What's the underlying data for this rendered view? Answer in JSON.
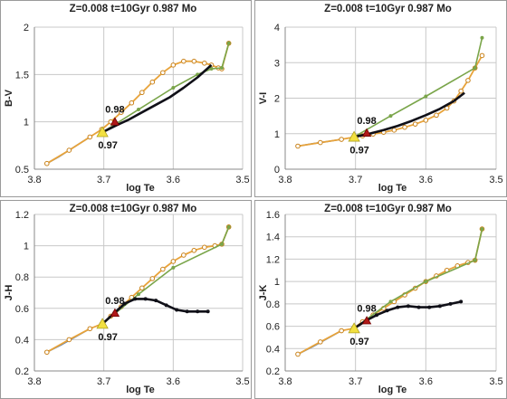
{
  "colors": {
    "grid": "#c8c8c8",
    "axis": "#888888",
    "model_a": "#e8a33a",
    "model_a_marker_edge": "#c9821a",
    "model_b": "#101018",
    "model_c": "#7aa54a",
    "model_d": "#5a7fb0",
    "point_097": "#f2e040",
    "point_098": "#b01818"
  },
  "chart_data": [
    {
      "type": "line",
      "title": "Z=0.008  t=10Gyr  0.987 Mo",
      "xlabel": "log Te",
      "ylabel": "B-V",
      "xlim": [
        3.8,
        3.5
      ],
      "ylim": [
        0.5,
        2.0
      ],
      "xticks": [
        3.8,
        3.7,
        3.6,
        3.5
      ],
      "xtick_labels": [
        "3.8",
        "3.7",
        "3.6",
        "3.5"
      ],
      "yticks": [
        0.5,
        1.0,
        1.5,
        2.0
      ],
      "ytick_labels": [
        "0.5",
        "1",
        "1.5",
        "2"
      ],
      "grid": true,
      "series": [
        {
          "color_key": "model_d",
          "x": [
            3.782,
            3.765,
            3.75,
            3.735,
            3.72
          ],
          "y": [
            0.56,
            0.63,
            0.7,
            0.77,
            0.84
          ]
        },
        {
          "color_key": "model_a",
          "markers": true,
          "x": [
            3.782,
            3.75,
            3.72,
            3.703,
            3.69,
            3.675,
            3.66,
            3.645,
            3.63,
            3.615,
            3.6,
            3.585,
            3.57,
            3.555,
            3.545,
            3.535,
            3.53,
            3.52
          ],
          "y": [
            0.56,
            0.7,
            0.84,
            0.92,
            1.0,
            1.1,
            1.2,
            1.31,
            1.42,
            1.52,
            1.6,
            1.64,
            1.64,
            1.62,
            1.6,
            1.57,
            1.56,
            1.83
          ]
        },
        {
          "color_key": "model_c",
          "markers": true,
          "x": [
            3.702,
            3.65,
            3.6,
            3.565,
            3.545,
            3.53,
            3.52
          ],
          "y": [
            0.89,
            1.13,
            1.36,
            1.5,
            1.56,
            1.57,
            1.83
          ]
        },
        {
          "color_key": "model_b",
          "x": [
            3.702,
            3.68,
            3.665,
            3.645,
            3.625,
            3.605,
            3.585,
            3.565,
            3.545
          ],
          "y": [
            0.89,
            0.97,
            1.02,
            1.1,
            1.18,
            1.26,
            1.36,
            1.47,
            1.6
          ]
        }
      ],
      "points": [
        {
          "label": "0.97",
          "color_key": "point_097",
          "shape": "triangle",
          "x": 3.702,
          "y": 0.89
        },
        {
          "label": "0.98",
          "color_key": "point_098",
          "shape": "triangle",
          "x": 3.684,
          "y": 1.0
        }
      ]
    },
    {
      "type": "line",
      "title": "Z=0.008  t=10Gyr  0.987 Mo",
      "xlabel": "log Te",
      "ylabel": "V-I",
      "xlim": [
        3.8,
        3.5
      ],
      "ylim": [
        0,
        4
      ],
      "xticks": [
        3.8,
        3.7,
        3.6,
        3.5
      ],
      "xtick_labels": [
        "3.8",
        "3.7",
        "3.6",
        "3.5"
      ],
      "yticks": [
        0,
        1,
        2,
        3,
        4
      ],
      "ytick_labels": [
        "0",
        "1",
        "2",
        "3",
        "4"
      ],
      "grid": true,
      "series": [
        {
          "color_key": "model_d",
          "x": [
            3.782,
            3.76,
            3.74,
            3.72
          ],
          "y": [
            0.65,
            0.72,
            0.78,
            0.84
          ]
        },
        {
          "color_key": "model_a",
          "markers": true,
          "x": [
            3.782,
            3.75,
            3.72,
            3.703,
            3.69,
            3.675,
            3.66,
            3.645,
            3.63,
            3.615,
            3.6,
            3.585,
            3.57,
            3.56,
            3.55,
            3.54,
            3.53,
            3.52
          ],
          "y": [
            0.65,
            0.75,
            0.84,
            0.9,
            0.94,
            0.99,
            1.04,
            1.1,
            1.18,
            1.27,
            1.38,
            1.52,
            1.72,
            1.92,
            2.2,
            2.5,
            2.85,
            3.2
          ]
        },
        {
          "color_key": "model_c",
          "markers": true,
          "x": [
            3.702,
            3.65,
            3.6,
            3.53,
            3.52
          ],
          "y": [
            0.91,
            1.5,
            2.05,
            2.85,
            3.7
          ]
        },
        {
          "color_key": "model_b",
          "x": [
            3.702,
            3.68,
            3.66,
            3.64,
            3.62,
            3.6,
            3.58,
            3.56,
            3.545
          ],
          "y": [
            0.91,
            1.0,
            1.1,
            1.22,
            1.36,
            1.52,
            1.7,
            1.92,
            2.15
          ]
        }
      ],
      "points": [
        {
          "label": "0.97",
          "color_key": "point_097",
          "shape": "triangle",
          "x": 3.702,
          "y": 0.91
        },
        {
          "label": "0.98",
          "color_key": "point_098",
          "shape": "triangle",
          "x": 3.684,
          "y": 1.02
        }
      ]
    },
    {
      "type": "line",
      "title": "Z=0.008  t=10Gyr  0.987 Mo",
      "xlabel": "log Te",
      "ylabel": "J-H",
      "xlim": [
        3.8,
        3.5
      ],
      "ylim": [
        0.2,
        1.2
      ],
      "xticks": [
        3.8,
        3.7,
        3.6,
        3.5
      ],
      "xtick_labels": [
        "3.8",
        "3.7",
        "3.6",
        "3.5"
      ],
      "yticks": [
        0.2,
        0.4,
        0.6,
        0.8,
        1.0,
        1.2
      ],
      "ytick_labels": [
        "0.2",
        "0.4",
        "0.6",
        "0.8",
        "1",
        "1.2"
      ],
      "grid": true,
      "series": [
        {
          "color_key": "model_d",
          "x": [
            3.782,
            3.76,
            3.74,
            3.72
          ],
          "y": [
            0.32,
            0.37,
            0.42,
            0.47
          ]
        },
        {
          "color_key": "model_a",
          "markers": true,
          "x": [
            3.782,
            3.75,
            3.72,
            3.703,
            3.69,
            3.675,
            3.66,
            3.645,
            3.63,
            3.615,
            3.6,
            3.585,
            3.57,
            3.555,
            3.54,
            3.53,
            3.52
          ],
          "y": [
            0.32,
            0.4,
            0.47,
            0.5,
            0.55,
            0.61,
            0.67,
            0.73,
            0.79,
            0.85,
            0.9,
            0.94,
            0.97,
            0.99,
            1.0,
            1.01,
            1.12
          ]
        },
        {
          "color_key": "model_c",
          "markers": true,
          "x": [
            3.702,
            3.65,
            3.6,
            3.53,
            3.52
          ],
          "y": [
            0.5,
            0.69,
            0.86,
            1.01,
            1.12
          ]
        },
        {
          "color_key": "model_b",
          "markers": true,
          "x": [
            3.702,
            3.685,
            3.67,
            3.655,
            3.64,
            3.625,
            3.61,
            3.595,
            3.58,
            3.565,
            3.55
          ],
          "y": [
            0.5,
            0.57,
            0.63,
            0.66,
            0.66,
            0.65,
            0.62,
            0.59,
            0.58,
            0.58,
            0.58
          ]
        }
      ],
      "points": [
        {
          "label": "0.97",
          "color_key": "point_097",
          "shape": "triangle",
          "x": 3.702,
          "y": 0.5
        },
        {
          "label": "0.98",
          "color_key": "point_098",
          "shape": "triangle",
          "x": 3.684,
          "y": 0.57
        }
      ]
    },
    {
      "type": "line",
      "title": "Z=0.008  t=10Gyr  0.987 Mo",
      "xlabel": "log Te",
      "ylabel": "J-K",
      "xlim": [
        3.8,
        3.5
      ],
      "ylim": [
        0.2,
        1.6
      ],
      "xticks": [
        3.8,
        3.7,
        3.6,
        3.5
      ],
      "xtick_labels": [
        "3.8",
        "3.7",
        "3.6",
        "3.5"
      ],
      "yticks": [
        0.2,
        0.4,
        0.6,
        0.8,
        1.0,
        1.2,
        1.4,
        1.6
      ],
      "ytick_labels": [
        "0.2",
        "0.4",
        "0.6",
        "0.8",
        "1",
        "1.2",
        "1.4",
        "1.6"
      ],
      "grid": true,
      "series": [
        {
          "color_key": "model_d",
          "x": [
            3.782,
            3.76,
            3.74,
            3.72
          ],
          "y": [
            0.35,
            0.42,
            0.49,
            0.56
          ]
        },
        {
          "color_key": "model_a",
          "markers": true,
          "x": [
            3.782,
            3.75,
            3.72,
            3.703,
            3.69,
            3.675,
            3.66,
            3.645,
            3.63,
            3.615,
            3.6,
            3.585,
            3.57,
            3.555,
            3.54,
            3.53,
            3.52
          ],
          "y": [
            0.35,
            0.46,
            0.56,
            0.58,
            0.64,
            0.7,
            0.76,
            0.82,
            0.88,
            0.94,
            1.0,
            1.05,
            1.1,
            1.14,
            1.17,
            1.19,
            1.47
          ]
        },
        {
          "color_key": "model_c",
          "markers": true,
          "x": [
            3.702,
            3.65,
            3.6,
            3.53,
            3.52
          ],
          "y": [
            0.58,
            0.82,
            1.0,
            1.19,
            1.47
          ]
        },
        {
          "color_key": "model_b",
          "markers": true,
          "x": [
            3.702,
            3.685,
            3.67,
            3.655,
            3.64,
            3.625,
            3.61,
            3.595,
            3.58,
            3.565,
            3.55
          ],
          "y": [
            0.58,
            0.65,
            0.7,
            0.74,
            0.77,
            0.78,
            0.77,
            0.77,
            0.78,
            0.8,
            0.82
          ]
        }
      ],
      "points": [
        {
          "label": "0.97",
          "color_key": "point_097",
          "shape": "triangle",
          "x": 3.702,
          "y": 0.58
        },
        {
          "label": "0.98",
          "color_key": "point_098",
          "shape": "triangle",
          "x": 3.684,
          "y": 0.65
        }
      ]
    }
  ]
}
